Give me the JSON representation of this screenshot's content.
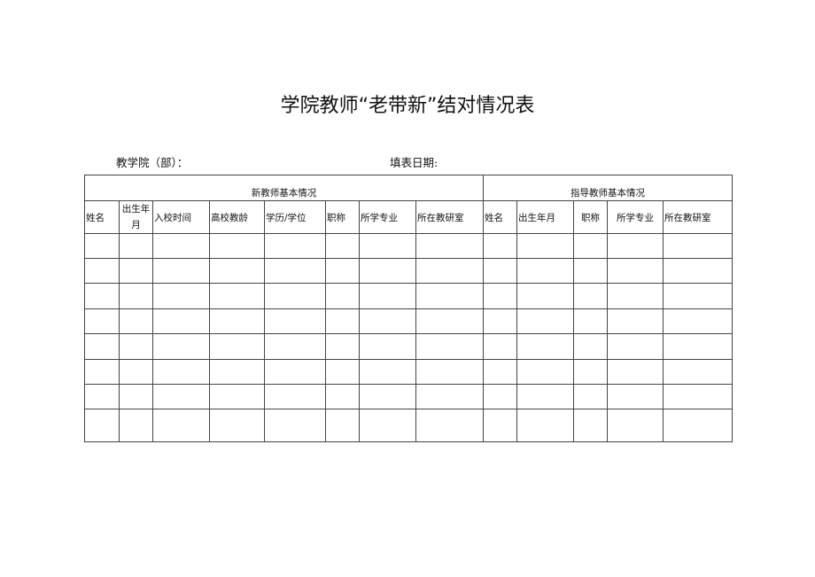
{
  "title": "学院教师“老带新”结对情况表",
  "department_label": "教学院（部）：",
  "date_label": "填表日期:",
  "table": {
    "group_new": "新教师基本情况",
    "group_mentor": "指导教师基本情况",
    "new_headers": [
      "姓名",
      "出生年月",
      "入校时间",
      "高校教龄",
      "学历/学位",
      "职称",
      "所学专业",
      "所在教研室"
    ],
    "mentor_headers": [
      "姓名",
      "出生年月",
      "职称",
      "所学专业",
      "所在教研室"
    ],
    "rows": [
      [
        "",
        "",
        "",
        "",
        "",
        "",
        "",
        "",
        "",
        "",
        "",
        "",
        ""
      ],
      [
        "",
        "",
        "",
        "",
        "",
        "",
        "",
        "",
        "",
        "",
        "",
        "",
        ""
      ],
      [
        "",
        "",
        "",
        "",
        "",
        "",
        "",
        "",
        "",
        "",
        "",
        "",
        ""
      ],
      [
        "",
        "",
        "",
        "",
        "",
        "",
        "",
        "",
        "",
        "",
        "",
        "",
        ""
      ],
      [
        "",
        "",
        "",
        "",
        "",
        "",
        "",
        "",
        "",
        "",
        "",
        "",
        ""
      ],
      [
        "",
        "",
        "",
        "",
        "",
        "",
        "",
        "",
        "",
        "",
        "",
        "",
        ""
      ],
      [
        "",
        "",
        "",
        "",
        "",
        "",
        "",
        "",
        "",
        "",
        "",
        "",
        ""
      ],
      [
        "",
        "",
        "",
        "",
        "",
        "",
        "",
        "",
        "",
        "",
        "",
        "",
        ""
      ]
    ]
  }
}
